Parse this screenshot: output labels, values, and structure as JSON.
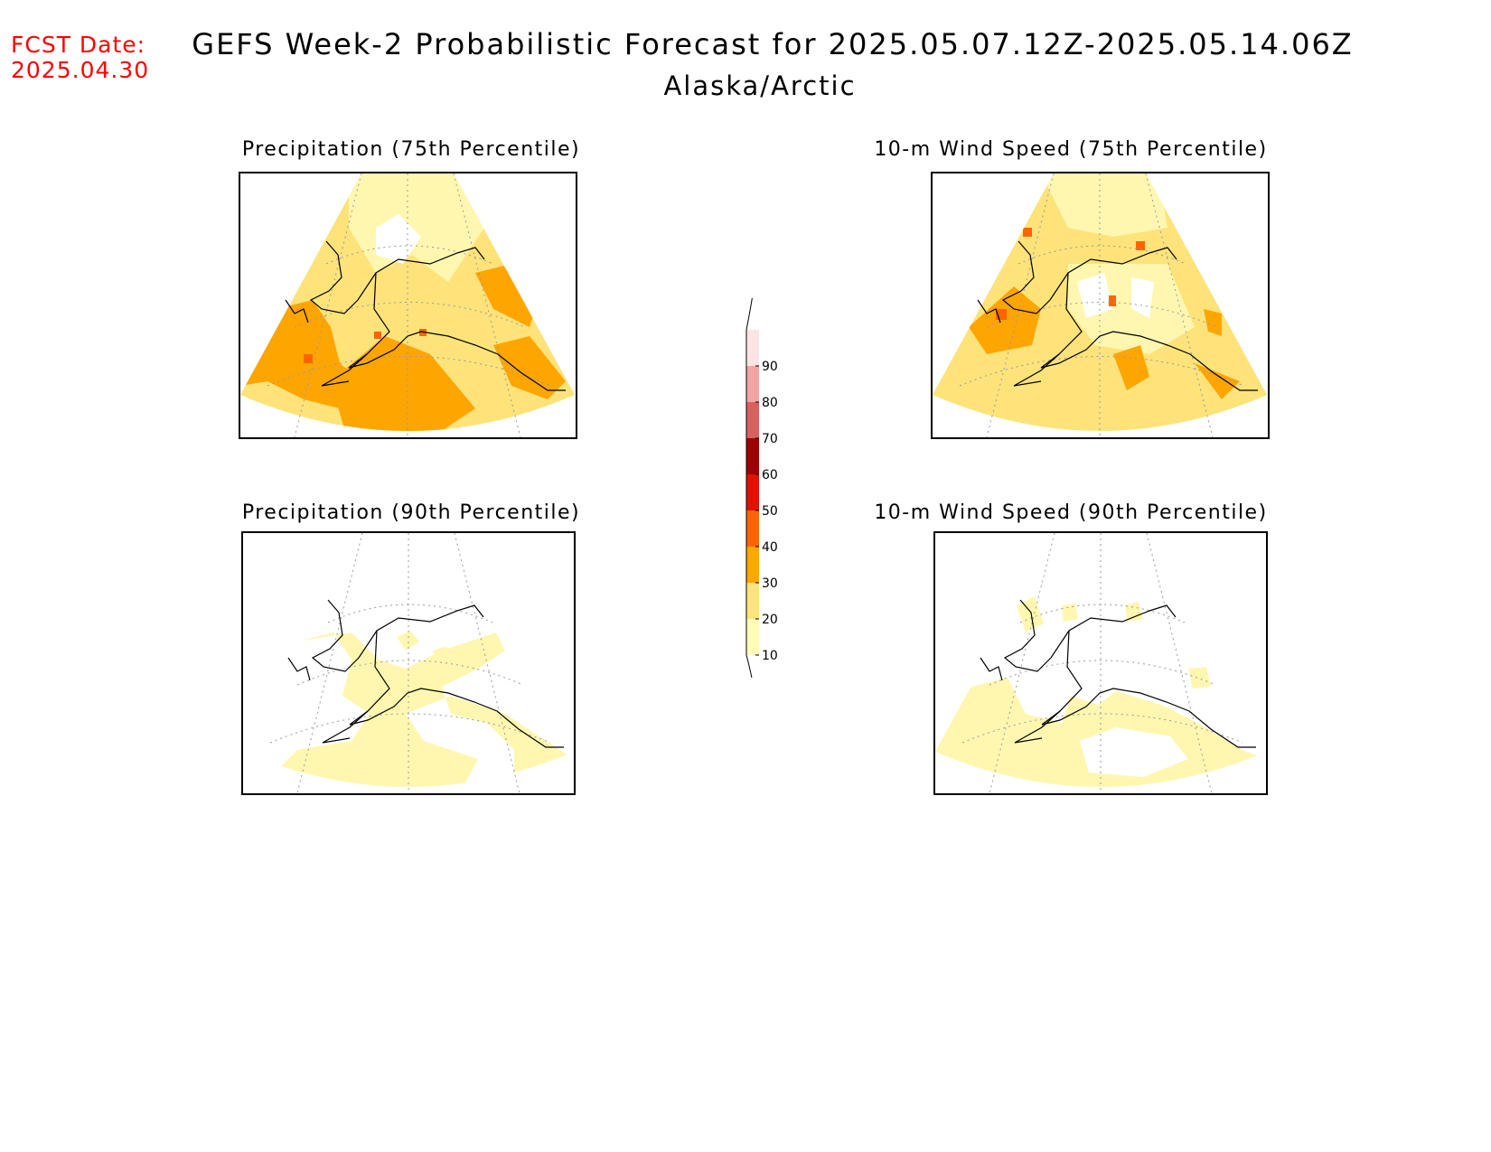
{
  "fcst_date": {
    "label": "FCST Date:",
    "value": "2025.04.30"
  },
  "title": "GEFS Week-2 Probabilistic Forecast for 2025.05.07.12Z-2025.05.14.06Z",
  "subtitle": "Alaska/Arctic",
  "panels": [
    {
      "title": "Precipitation (75th Percentile)"
    },
    {
      "title": "10-m Wind Speed (75th Percentile)"
    },
    {
      "title": "Precipitation (90th Percentile)"
    },
    {
      "title": "10-m Wind Speed (90th Percentile)"
    }
  ],
  "colorbar": {
    "levels": [
      "10",
      "20",
      "30",
      "40",
      "50",
      "60",
      "70",
      "80",
      "90"
    ],
    "colors": [
      "#fffcb8",
      "#fde47a",
      "#ffa600",
      "#ff6400",
      "#e01200",
      "#a00000",
      "#d96060",
      "#f2a4a4",
      "#fde4e4"
    ]
  },
  "colors": {
    "p10": "#fff7b0",
    "p20": "#fde37a",
    "p30": "#ffa500",
    "p40": "#ff6400",
    "coast": "#000000",
    "grid": "#999999",
    "fcst_text": "#ff0000"
  }
}
